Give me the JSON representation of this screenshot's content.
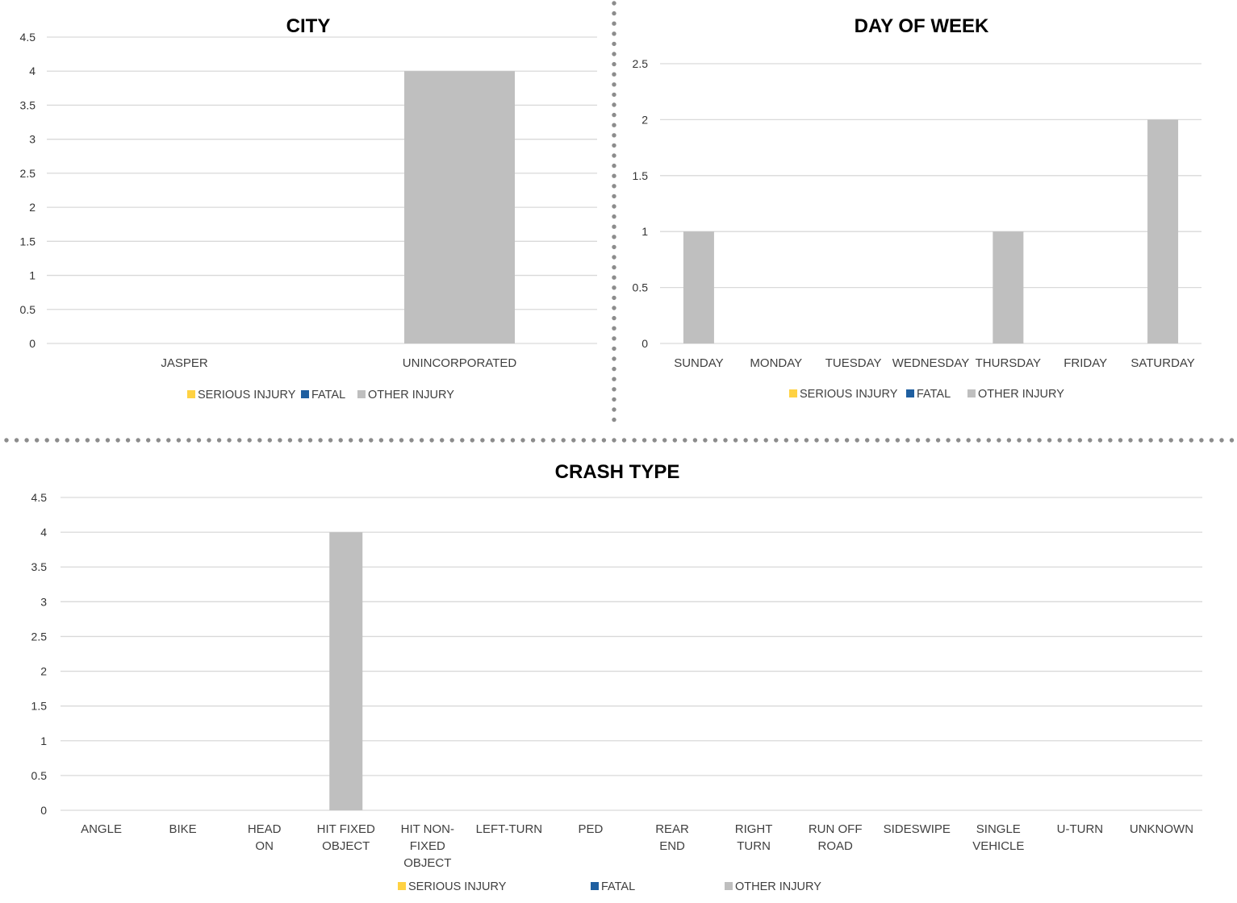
{
  "colors": {
    "serious_injury": "#FFD243",
    "fatal": "#1F5FA0",
    "other_injury": "#BFBFBF",
    "gridline": "#D9D9D9",
    "divider": "#8C8C8C"
  },
  "legend": [
    "SERIOUS INJURY",
    "FATAL",
    "OTHER INJURY"
  ],
  "chart_data": [
    {
      "id": "city",
      "type": "bar",
      "title": "CITY",
      "categories": [
        "JASPER",
        "UNINCORPORATED"
      ],
      "ylim": [
        0,
        4.5
      ],
      "yticks": [
        "0",
        "0.5",
        "1",
        "1.5",
        "2",
        "2.5",
        "3",
        "3.5",
        "4",
        "4.5"
      ],
      "series": [
        {
          "name": "SERIOUS INJURY",
          "values": [
            0,
            0
          ]
        },
        {
          "name": "FATAL",
          "values": [
            0,
            0
          ]
        },
        {
          "name": "OTHER INJURY",
          "values": [
            0,
            4
          ]
        }
      ],
      "grid": true,
      "legend_position": "bottom"
    },
    {
      "id": "dow",
      "type": "bar",
      "title": "DAY OF WEEK",
      "categories": [
        "SUNDAY",
        "MONDAY",
        "TUESDAY",
        "WEDNESDAY",
        "THURSDAY",
        "FRIDAY",
        "SATURDAY"
      ],
      "ylim": [
        0,
        2.5
      ],
      "yticks": [
        "0",
        "0.5",
        "1",
        "1.5",
        "2",
        "2.5"
      ],
      "series": [
        {
          "name": "SERIOUS INJURY",
          "values": [
            0,
            0,
            0,
            0,
            0,
            0,
            0
          ]
        },
        {
          "name": "FATAL",
          "values": [
            0,
            0,
            0,
            0,
            0,
            0,
            0
          ]
        },
        {
          "name": "OTHER INJURY",
          "values": [
            1,
            0,
            0,
            0,
            1,
            0,
            2
          ]
        }
      ],
      "grid": true,
      "legend_position": "bottom"
    },
    {
      "id": "crash",
      "type": "bar",
      "title": "CRASH TYPE",
      "categories": [
        [
          "ANGLE"
        ],
        [
          "BIKE"
        ],
        [
          "HEAD",
          "ON"
        ],
        [
          "HIT FIXED",
          "OBJECT"
        ],
        [
          "HIT NON-",
          "FIXED",
          "OBJECT"
        ],
        [
          "LEFT-TURN"
        ],
        [
          "PED"
        ],
        [
          "REAR",
          "END"
        ],
        [
          "RIGHT",
          "TURN"
        ],
        [
          "RUN OFF",
          "ROAD"
        ],
        [
          "SIDESWIPE"
        ],
        [
          "SINGLE",
          "VEHICLE"
        ],
        [
          "U-TURN"
        ],
        [
          "UNKNOWN"
        ]
      ],
      "ylim": [
        0,
        4.5
      ],
      "yticks": [
        "0",
        "0.5",
        "1",
        "1.5",
        "2",
        "2.5",
        "3",
        "3.5",
        "4",
        "4.5"
      ],
      "series": [
        {
          "name": "SERIOUS INJURY",
          "values": [
            0,
            0,
            0,
            0,
            0,
            0,
            0,
            0,
            0,
            0,
            0,
            0,
            0,
            0
          ]
        },
        {
          "name": "FATAL",
          "values": [
            0,
            0,
            0,
            0,
            0,
            0,
            0,
            0,
            0,
            0,
            0,
            0,
            0,
            0
          ]
        },
        {
          "name": "OTHER INJURY",
          "values": [
            0,
            0,
            0,
            4,
            0,
            0,
            0,
            0,
            0,
            0,
            0,
            0,
            0,
            0
          ]
        }
      ],
      "grid": true,
      "legend_position": "bottom"
    }
  ]
}
